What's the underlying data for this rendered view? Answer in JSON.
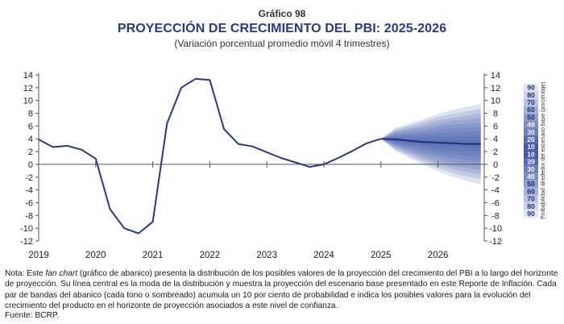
{
  "header": {
    "chart_number": "Gráfico 98",
    "title": "PROYECCIÓN DE CRECIMIENTO DEL PBI: 2025-2026",
    "subtitle": "(Variación porcentual promedio móvil 4 trimestres)"
  },
  "footer": {
    "note_prefix": "Nota: Este ",
    "note_italic": "fan chart",
    "note_rest": " (gráfico de abanico) presenta la distribución de los posibles valores de la proyección del crecimiento del PBI a lo largo del horizonte de proyección. Su línea central es la moda de la distribución y muestra la proyección del escenario base presentado en este Reporte de Inflación. Cada par de bandas del abanico (cada tono o sombreado) acumula un 10 por ciento de probabilidad e indica los posibles valores para la evolución del crecimiento del producto en el horizonte de proyección asociados a este nivel de confianza.",
    "source": "Fuente: BCRP."
  },
  "colors": {
    "line": "#243a8f",
    "title": "#243a8f",
    "fan": "#3a4fa8"
  },
  "chart_data": {
    "type": "line",
    "x_tick_labels": [
      "2019",
      "2020",
      "2021",
      "2022",
      "2023",
      "2024",
      "2025",
      "2026"
    ],
    "ylim": [
      -12,
      14
    ],
    "y_ticks": [
      14,
      12,
      10,
      8,
      6,
      4,
      2,
      0,
      -2,
      -4,
      -6,
      -8,
      -10,
      -12
    ],
    "grid": false,
    "series": [
      {
        "x": [
          "2019Q1",
          "2019Q2",
          "2019Q3",
          "2019Q4",
          "2020Q1",
          "2020Q2",
          "2020Q3",
          "2020Q4",
          "2021Q1",
          "2021Q2",
          "2021Q3",
          "2021Q4",
          "2022Q1",
          "2022Q2",
          "2022Q3",
          "2022Q4",
          "2023Q1",
          "2023Q2",
          "2023Q3",
          "2023Q4",
          "2024Q1",
          "2024Q2",
          "2024Q3",
          "2024Q4",
          "2025Q1"
        ],
        "values": [
          3.9,
          2.7,
          2.9,
          2.3,
          0.9,
          -7.0,
          -10.0,
          -10.8,
          -9.0,
          6.4,
          12.0,
          13.4,
          13.2,
          5.5,
          3.2,
          2.8,
          1.9,
          1.0,
          0.3,
          -0.4,
          0.0,
          1.0,
          2.1,
          3.3,
          4.0
        ]
      }
    ],
    "fan": {
      "x": [
        "2025Q1",
        "2025Q2",
        "2025Q3",
        "2025Q4",
        "2026Q1",
        "2026Q2",
        "2026Q3",
        "2026Q4"
      ],
      "central": [
        4.0,
        3.9,
        3.7,
        3.5,
        3.4,
        3.3,
        3.2,
        3.2
      ],
      "bands": [
        {
          "probability": 10,
          "half_width": [
            0,
            0.2,
            0.3,
            0.4,
            0.5,
            0.55,
            0.6,
            0.65
          ]
        },
        {
          "probability": 20,
          "half_width": [
            0,
            0.4,
            0.6,
            0.8,
            1.0,
            1.1,
            1.2,
            1.3
          ]
        },
        {
          "probability": 30,
          "half_width": [
            0,
            0.6,
            0.9,
            1.2,
            1.5,
            1.7,
            1.85,
            2.0
          ]
        },
        {
          "probability": 40,
          "half_width": [
            0,
            0.8,
            1.2,
            1.6,
            2.0,
            2.3,
            2.5,
            2.7
          ]
        },
        {
          "probability": 50,
          "half_width": [
            0,
            1.0,
            1.5,
            2.0,
            2.5,
            2.9,
            3.2,
            3.4
          ]
        },
        {
          "probability": 60,
          "half_width": [
            0,
            1.2,
            1.8,
            2.4,
            3.0,
            3.5,
            3.8,
            4.1
          ]
        },
        {
          "probability": 70,
          "half_width": [
            0,
            1.4,
            2.1,
            2.8,
            3.5,
            4.0,
            4.4,
            4.8
          ]
        },
        {
          "probability": 80,
          "half_width": [
            0,
            1.6,
            2.4,
            3.2,
            4.0,
            4.6,
            5.1,
            5.5
          ]
        },
        {
          "probability": 90,
          "half_width": [
            0,
            1.8,
            2.7,
            3.6,
            4.5,
            5.2,
            5.8,
            6.3
          ]
        }
      ]
    },
    "probability_scale": {
      "label": "Probabilidad alrededor del escenario base (porcentaje)",
      "labels": [
        "90",
        "80",
        "70",
        "60",
        "50",
        "40",
        "30",
        "20",
        "10",
        "10",
        "20",
        "30",
        "40",
        "50",
        "60",
        "70",
        "80",
        "90"
      ]
    }
  }
}
